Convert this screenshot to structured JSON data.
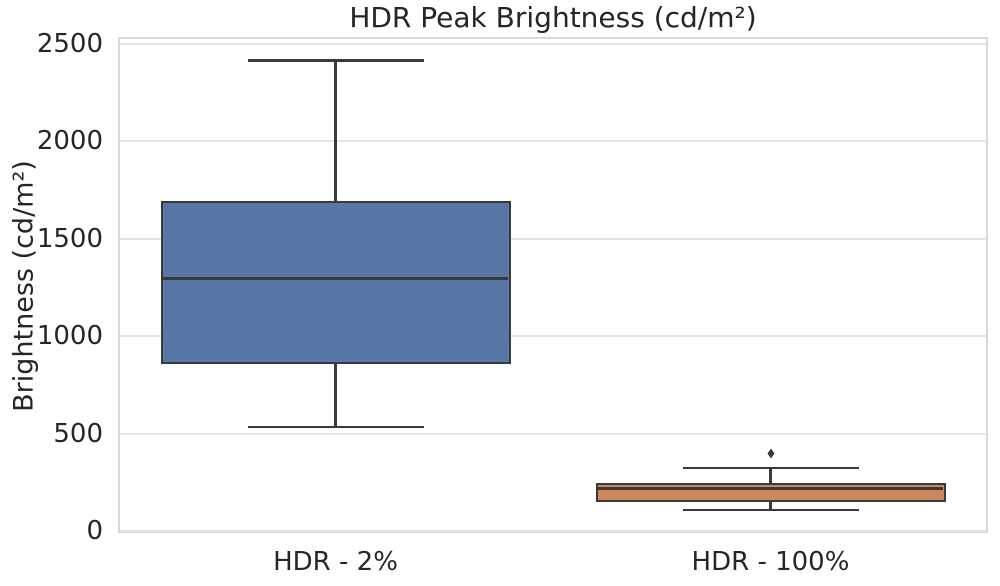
{
  "chart_data": {
    "type": "boxplot",
    "title": "HDR Peak Brightness (cd/m²)",
    "ylabel": "Brightness (cd/m²)",
    "xlabel": "",
    "categories": [
      "HDR - 2%",
      "HDR - 100%"
    ],
    "yticks": [
      0,
      500,
      1000,
      1500,
      2000,
      2500
    ],
    "ylim": [
      -10,
      2535
    ],
    "grid": "horizontal",
    "legend": "none",
    "series": [
      {
        "category": "HDR - 2%",
        "whisker_low": 535,
        "q1": 855,
        "median": 1295,
        "q3": 1695,
        "whisker_high": 2415,
        "outliers": [],
        "fill_color": "#5876A6"
      },
      {
        "category": "HDR - 100%",
        "whisker_low": 107,
        "q1": 151,
        "median": 218,
        "q3": 246,
        "whisker_high": 324,
        "outliers": [
          401
        ],
        "fill_color": "#CD875F"
      }
    ],
    "colors": {
      "line_color": "#3A3A3A",
      "grid_color": "#E4E4E4",
      "spine_color": "#D8D8D8",
      "text_color": "#262626",
      "background": "#FFFFFF"
    }
  }
}
